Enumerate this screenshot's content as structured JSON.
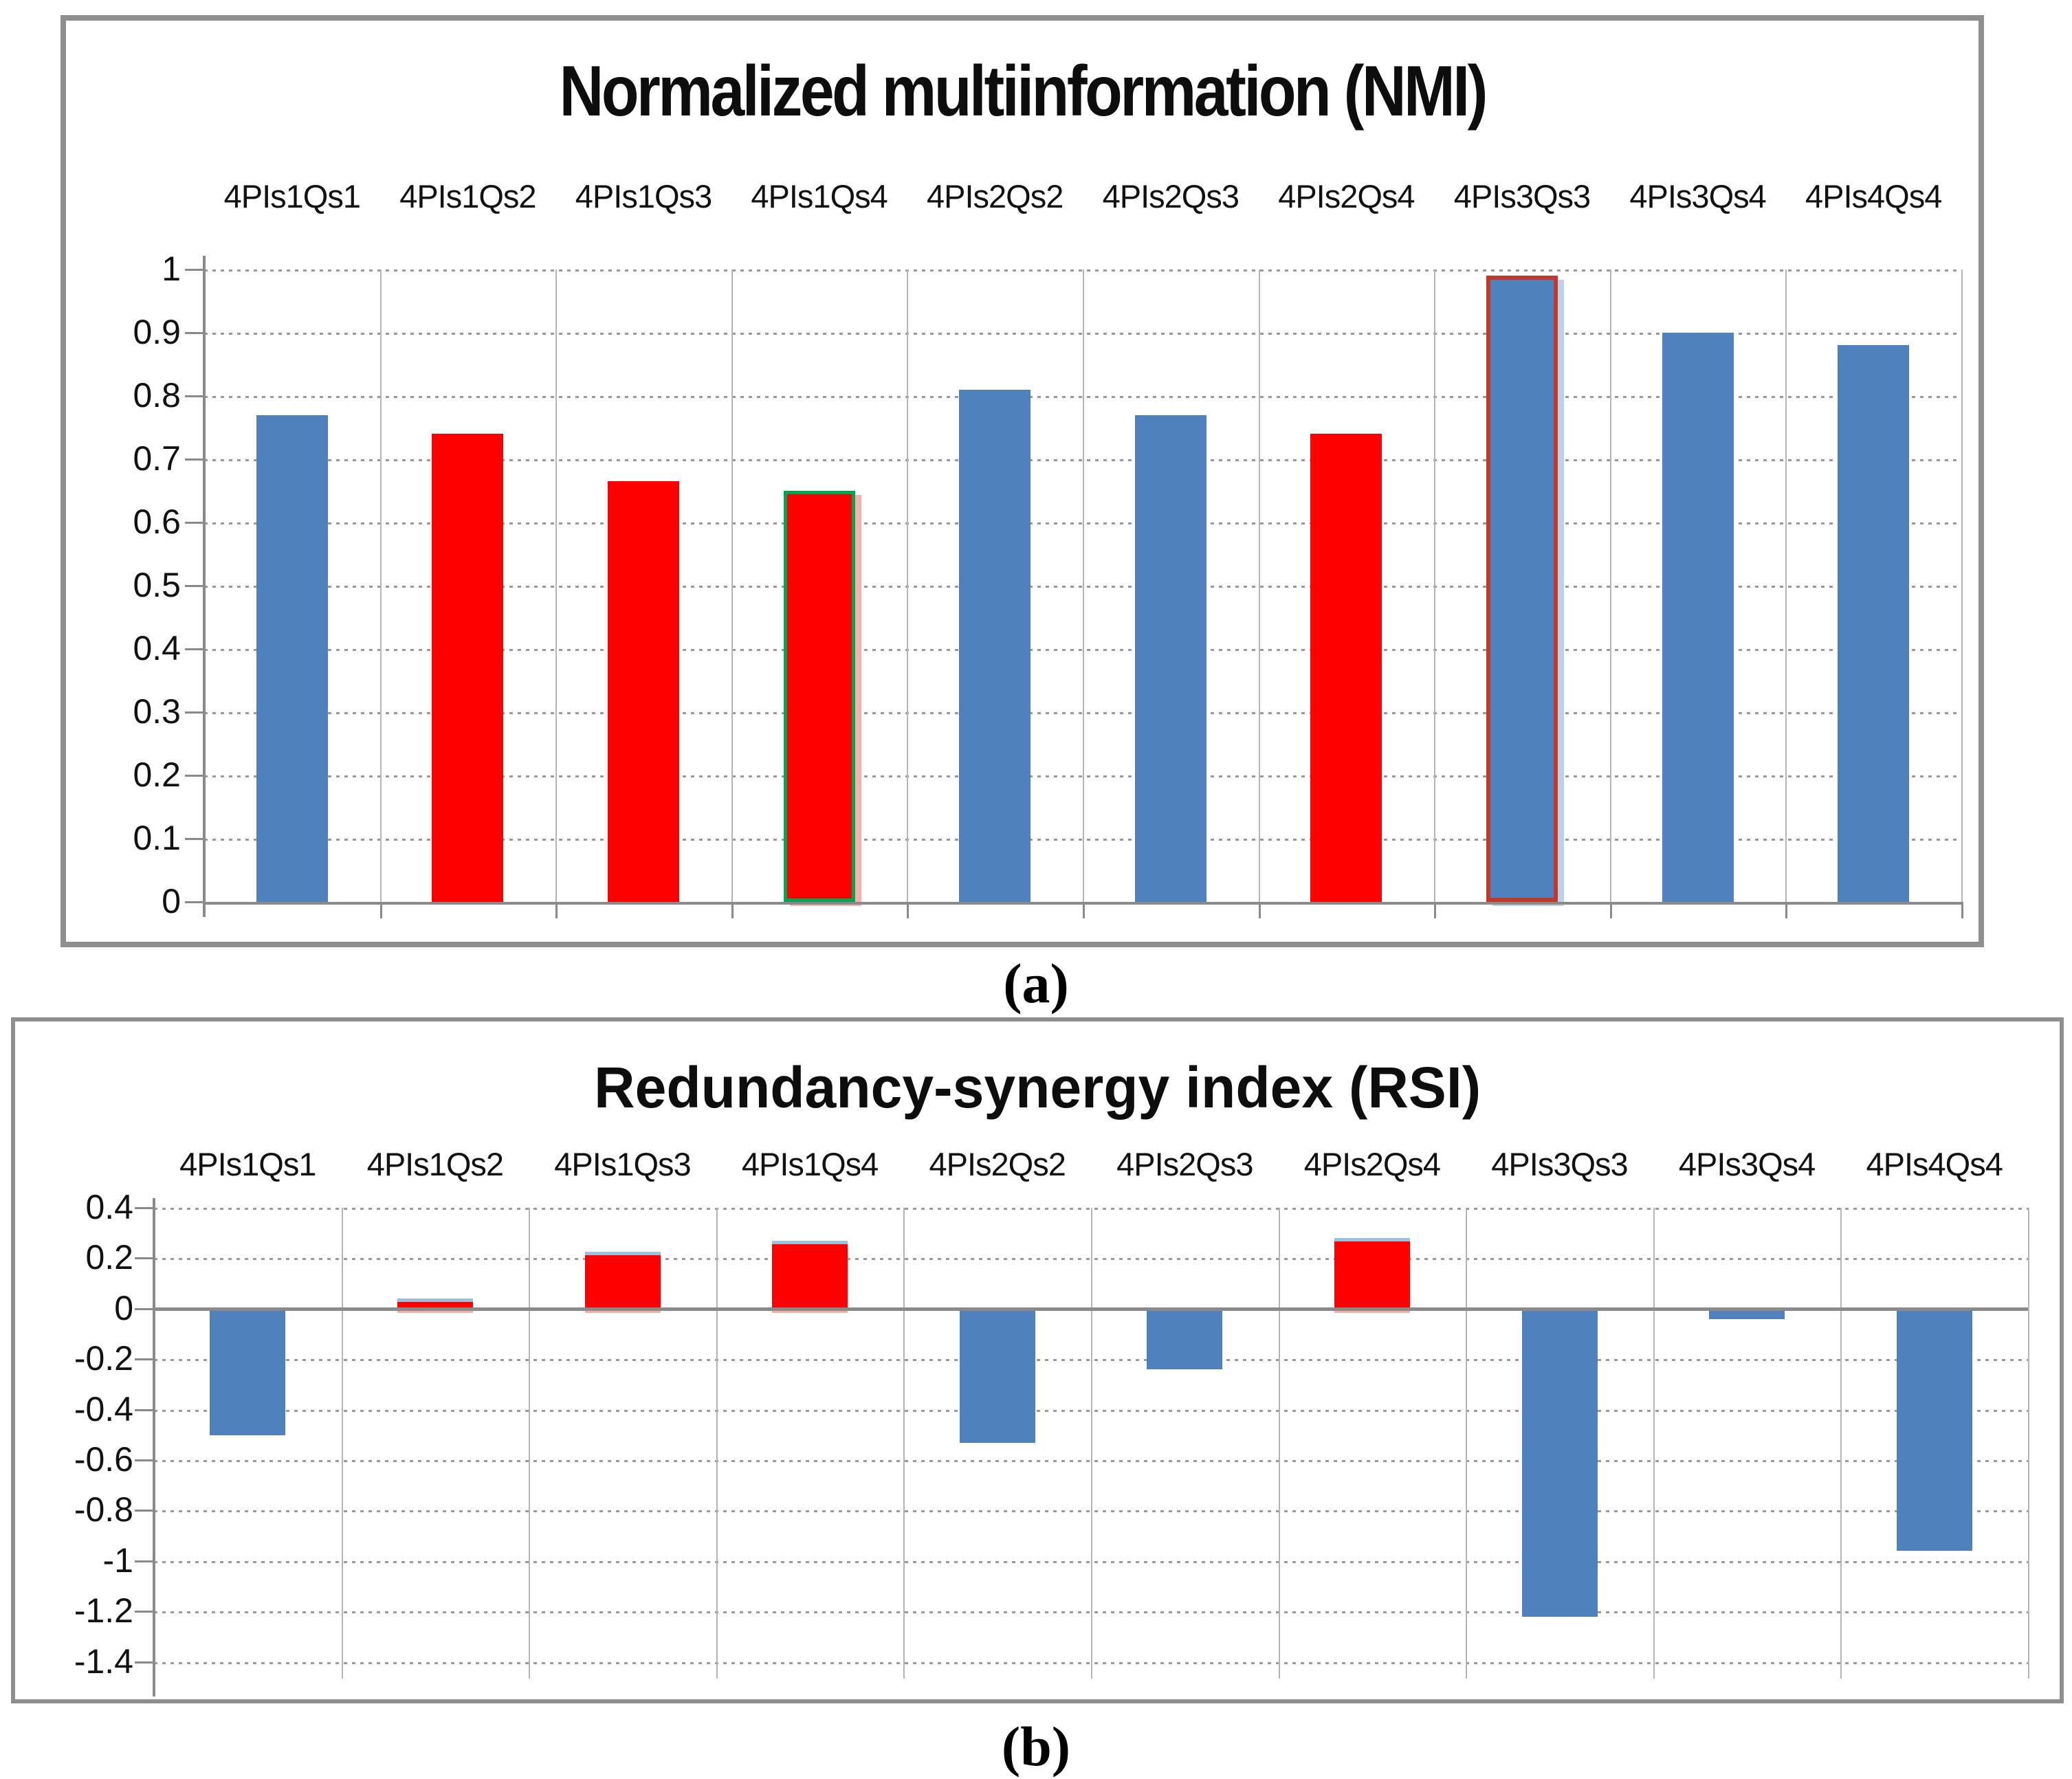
{
  "figure": {
    "caption_a": "(a)",
    "caption_b": "(b)"
  },
  "colors": {
    "bar_blue": "#4f81bd",
    "bar_red": "#fe0000",
    "outline_green": "#00a651",
    "outline_dark_red": "#c0392b",
    "red_bar_top_cap_blue": "#9dc0e2",
    "shadow_pink": "#f5b3ad",
    "shadow_light_blue": "#bdd0e9",
    "gridline_gray": "#9a9a9a",
    "axis_gray": "#8a8a8a",
    "panel_border_gray": "#8f8f8f"
  },
  "chart_data": [
    {
      "type": "bar",
      "panel": "a",
      "title": "Normalized multiinformation (NMI)",
      "categories": [
        "4PIs1Qs1",
        "4PIs1Qs2",
        "4PIs1Qs3",
        "4PIs1Qs4",
        "4PIs2Qs2",
        "4PIs2Qs3",
        "4PIs2Qs4",
        "4PIs3Qs3",
        "4PIs3Qs4",
        "4PIs4Qs4"
      ],
      "values": [
        0.77,
        0.74,
        0.665,
        0.65,
        0.81,
        0.77,
        0.74,
        0.99,
        0.9,
        0.88
      ],
      "bar_colors": [
        "blue",
        "red",
        "red",
        "red",
        "blue",
        "blue",
        "red",
        "blue",
        "blue",
        "blue"
      ],
      "bar_outlines": [
        "none",
        "none",
        "none",
        "green",
        "none",
        "none",
        "none",
        "dark-red",
        "none",
        "none"
      ],
      "xlabel": "",
      "ylabel": "",
      "ylim": [
        0,
        1
      ],
      "ytick_labels": [
        "1",
        "0.9",
        "0.8",
        "0.7",
        "0.6",
        "0.5",
        "0.4",
        "0.3",
        "0.2",
        "0.1",
        "0"
      ],
      "grid": "horizontal dotted, vertical solid column separators",
      "legend_position": "none"
    },
    {
      "type": "bar",
      "panel": "b",
      "title": "Redundancy-synergy index (RSI)",
      "categories": [
        "4PIs1Qs1",
        "4PIs1Qs2",
        "4PIs1Qs3",
        "4PIs1Qs4",
        "4PIs2Qs2",
        "4PIs2Qs3",
        "4PIs2Qs4",
        "4PIs3Qs3",
        "4PIs3Qs4",
        "4PIs4Qs4"
      ],
      "values": [
        -0.5,
        0.04,
        0.225,
        0.27,
        -0.53,
        -0.24,
        0.28,
        -1.22,
        -0.04,
        -0.96
      ],
      "bar_colors": [
        "blue",
        "red",
        "red",
        "red",
        "blue",
        "blue",
        "red",
        "blue",
        "blue",
        "blue"
      ],
      "bar_outlines": [
        "none",
        "cap-blue",
        "cap-blue",
        "cap-blue",
        "none",
        "none",
        "cap-blue",
        "none",
        "none",
        "none"
      ],
      "xlabel": "",
      "ylabel": "",
      "ylim": [
        -1.4,
        0.4
      ],
      "ytick_labels": [
        "0.4",
        "0.2",
        "0",
        "-0.2",
        "-0.4",
        "-0.6",
        "-0.8",
        "-1",
        "-1.2",
        "-1.4"
      ],
      "grid": "horizontal dotted with solid zero line, vertical solid column separators",
      "legend_position": "none"
    }
  ]
}
